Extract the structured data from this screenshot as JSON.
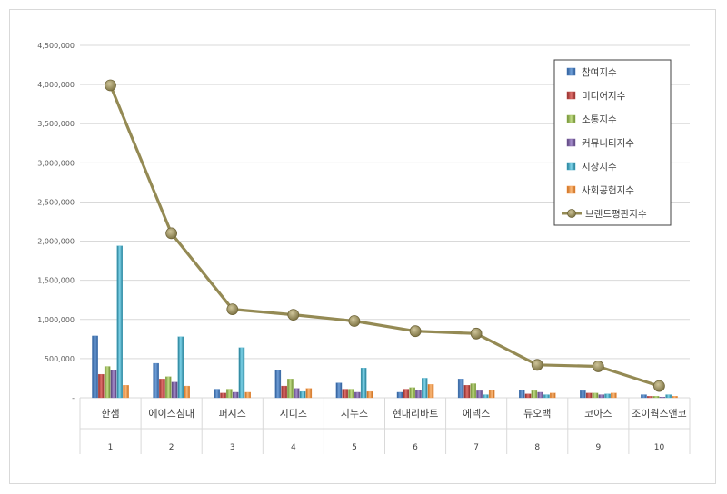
{
  "chart_data": {
    "type": "bar",
    "categories": [
      "한샘",
      "에이스침대",
      "퍼시스",
      "시디즈",
      "지누스",
      "현대리바트",
      "에넥스",
      "듀오백",
      "코아스",
      "조이웍스앤코"
    ],
    "ranks": [
      "1",
      "2",
      "3",
      "4",
      "5",
      "6",
      "7",
      "8",
      "9",
      "10"
    ],
    "y_ticks": [
      "-",
      "500,000",
      "1,000,000",
      "1,500,000",
      "2,000,000",
      "2,500,000",
      "3,000,000",
      "3,500,000",
      "4,000,000",
      "4,500,000"
    ],
    "ylim": [
      0,
      4500000
    ],
    "grid": true,
    "legend_position": "top-right",
    "series": [
      {
        "name": "참여지수",
        "color": "#4a7ebb",
        "values": [
          790000,
          440000,
          110000,
          350000,
          190000,
          70000,
          240000,
          100000,
          90000,
          40000
        ]
      },
      {
        "name": "미디어지수",
        "color": "#c0504d",
        "values": [
          300000,
          240000,
          60000,
          150000,
          110000,
          110000,
          160000,
          50000,
          60000,
          20000
        ]
      },
      {
        "name": "소통지수",
        "color": "#9bbb59",
        "values": [
          400000,
          270000,
          110000,
          240000,
          110000,
          130000,
          180000,
          90000,
          60000,
          20000
        ]
      },
      {
        "name": "커뮤니티지수",
        "color": "#8064a2",
        "values": [
          350000,
          200000,
          70000,
          120000,
          70000,
          100000,
          90000,
          70000,
          40000,
          10000
        ]
      },
      {
        "name": "시장지수",
        "color": "#4bacc6",
        "values": [
          1940000,
          780000,
          640000,
          80000,
          380000,
          250000,
          40000,
          40000,
          50000,
          40000
        ]
      },
      {
        "name": "사회공헌지수",
        "color": "#f79646",
        "values": [
          160000,
          150000,
          70000,
          120000,
          80000,
          170000,
          100000,
          60000,
          60000,
          20000
        ]
      }
    ],
    "line_series": {
      "name": "브랜드평판지수",
      "color": "#948a54",
      "values": [
        3990000,
        2100000,
        1130000,
        1060000,
        980000,
        850000,
        820000,
        420000,
        400000,
        150000
      ]
    }
  }
}
